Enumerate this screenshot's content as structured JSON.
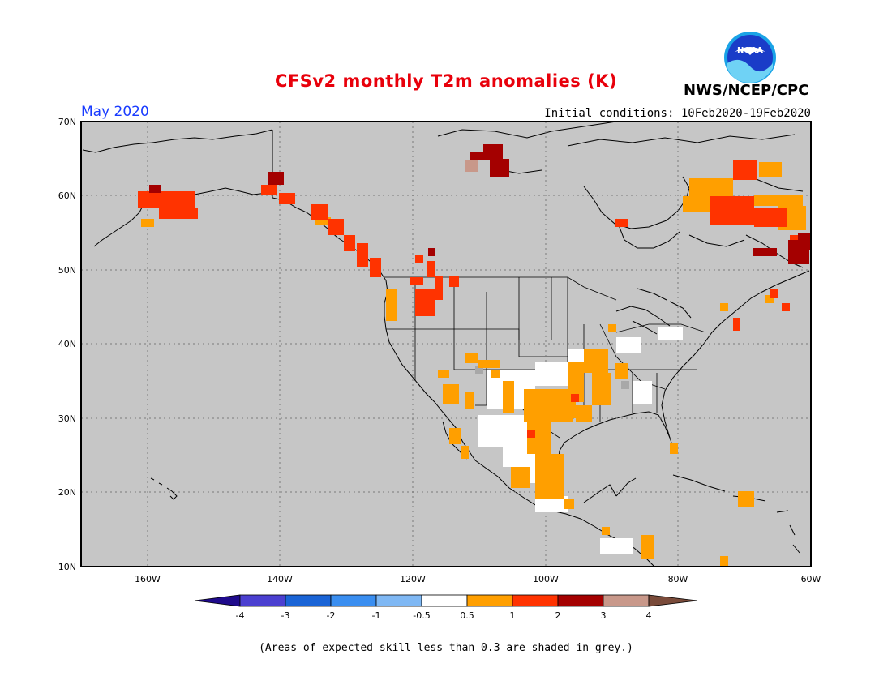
{
  "header": {
    "title": "CFSv2 monthly T2m anomalies (K)",
    "month": "May 2020",
    "initial_conditions": "Initial conditions: 10Feb2020-19Feb2020",
    "agency": "NWS/NCEP/CPC",
    "logo_text": "NOAA"
  },
  "axes": {
    "lat_labels": [
      "70N",
      "60N",
      "50N",
      "40N",
      "30N",
      "20N",
      "10N"
    ],
    "lon_labels": [
      "160W",
      "140W",
      "120W",
      "100W",
      "80W",
      "60W"
    ]
  },
  "legend": {
    "labels": [
      "-4",
      "-3",
      "-2",
      "-1",
      "-0.5",
      "0.5",
      "1",
      "2",
      "3",
      "4"
    ],
    "colors": {
      "lt_-4": "#1f0a8c",
      "-4_-3": "#4b3fd0",
      "-3_-2": "#1a64d6",
      "-2_-1": "#3a8ef0",
      "-1_-0.5": "#7fb8f4",
      "-0.5_0.5": "#ffffff",
      "0.5_1": "#ff9f00",
      "1_2": "#ff3300",
      "2_3": "#a40000",
      "3_4": "#c8988a",
      "gt_4": "#7a4b3a"
    }
  },
  "map": {
    "background_color": "#c6c6c6",
    "skill_mask": "grey"
  },
  "footnote": "(Areas of expected skill less than 0.3 are shaded in grey.)"
}
